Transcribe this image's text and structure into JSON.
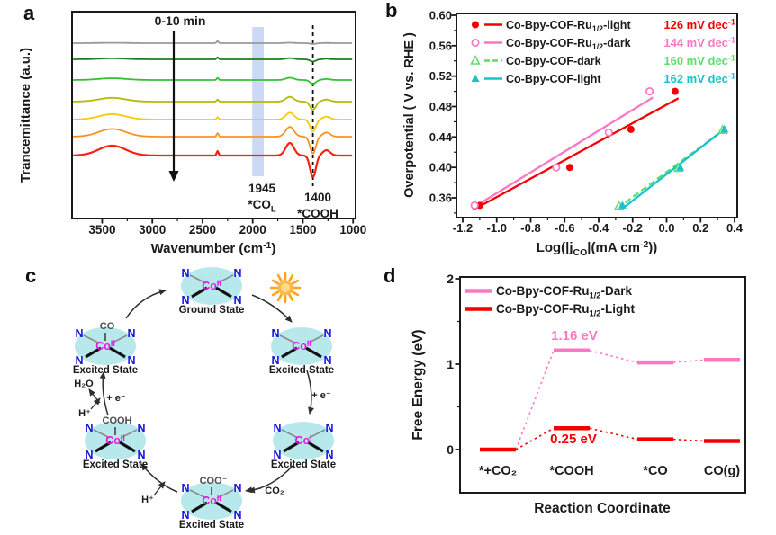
{
  "figure": {
    "background": "#ffffff"
  },
  "panels": [
    {
      "letter": "a"
    },
    {
      "letter": "b"
    },
    {
      "letter": "c"
    },
    {
      "letter": "d"
    }
  ],
  "chart_data": [
    {
      "panel": "a",
      "type": "line",
      "kind": "ftir-spectra",
      "ylabel": "Trancemittance (a.u.)",
      "xlabel_parts": [
        {
          "t": "Wavenumber (cm"
        },
        {
          "t": "-1",
          "sup": true
        },
        {
          "t": ")"
        }
      ],
      "x_ticks": [
        "3500",
        "3000",
        "2500",
        "2000",
        "1500",
        "1000"
      ],
      "x_range": [
        3800,
        975
      ],
      "time_annotation": "0-10 min",
      "highlight_band": {
        "from": 2005,
        "to": 1890,
        "color": "#ccd9f4"
      },
      "dashed_line_at": 1400,
      "peak_labels": [
        {
          "value": "1945",
          "species_parts": [
            {
              "t": "*CO"
            },
            {
              "t": "L",
              "sub": true
            }
          ]
        },
        {
          "value": "1400",
          "species_parts": [
            {
              "t": "*COOH"
            }
          ]
        }
      ],
      "traces": [
        {
          "time_order": 0,
          "color": "#999999",
          "offset": 48,
          "scale": 0.04
        },
        {
          "time_order": 1,
          "color": "#1e7d1e",
          "offset": 66,
          "scale": 0.1
        },
        {
          "time_order": 2,
          "color": "#33c133",
          "offset": 89,
          "scale": 0.18
        },
        {
          "time_order": 3,
          "color": "#b3bb00",
          "offset": 113,
          "scale": 0.38
        },
        {
          "time_order": 4,
          "color": "#fec800",
          "offset": 133,
          "scale": 0.55
        },
        {
          "time_order": 5,
          "color": "#ff9020",
          "offset": 152,
          "scale": 0.78
        },
        {
          "time_order": 6,
          "color": "#f82010",
          "offset": 173,
          "scale": 1.0
        }
      ],
      "peaks": [
        {
          "center": 3400,
          "width": 190,
          "depth": -11
        },
        {
          "center": 2350,
          "width": 13,
          "depth": -5,
          "min_scale": 0.45
        },
        {
          "center": 1630,
          "width": 58,
          "depth": -14
        },
        {
          "center": 1400,
          "width": 40,
          "depth": 24
        },
        {
          "center": 1265,
          "width": 52,
          "depth": -6
        }
      ]
    },
    {
      "panel": "b",
      "type": "scatter",
      "kind": "tafel-plot",
      "ylabel": "Overpotential ( V vs. RHE )",
      "xlabel_parts": [
        {
          "t": "Log(|j"
        },
        {
          "t": "CO",
          "sub": true
        },
        {
          "t": "|(mA cm"
        },
        {
          "t": "-2",
          "sup": true
        },
        {
          "t": "))"
        }
      ],
      "x_ticks": [
        "-1.2",
        "-1.0",
        "-0.8",
        "-0.6",
        "-0.4",
        "-0.2",
        "0.0",
        "0.2",
        "0.4"
      ],
      "y_ticks": [
        "0.36",
        "0.40",
        "0.44",
        "0.48",
        "0.52",
        "0.56",
        "0.60"
      ],
      "xlim": [
        -1.26,
        0.42
      ],
      "ylim": [
        0.332,
        0.602
      ],
      "series": [
        {
          "name_parts": [
            {
              "t": "Co-Bpy-COF-Ru"
            },
            {
              "t": "1/2",
              "sub": true
            },
            {
              "t": "-light"
            }
          ],
          "color": "#f40000",
          "marker": "circle-filled",
          "line": "solid",
          "slope_parts": [
            {
              "t": "126 mV dec"
            },
            {
              "t": "-1",
              "sup": true
            }
          ],
          "points": [
            [
              -1.1,
              0.35
            ],
            [
              -0.57,
              0.4
            ],
            [
              -0.21,
              0.45
            ],
            [
              0.05,
              0.5
            ]
          ],
          "fit_line": [
            [
              -1.14,
              0.344
            ],
            [
              0.07,
              0.491
            ]
          ]
        },
        {
          "name_parts": [
            {
              "t": "Co-Bpy-COF-Ru"
            },
            {
              "t": "1/2",
              "sub": true
            },
            {
              "t": "-dark"
            }
          ],
          "color": "#ff77c4",
          "marker": "circle-open",
          "line": "solid",
          "slope_parts": [
            {
              "t": "144 mV dec"
            },
            {
              "t": "-1",
              "sup": true
            }
          ],
          "points": [
            [
              -1.13,
              0.35
            ],
            [
              -0.65,
              0.4
            ],
            [
              -0.34,
              0.446
            ],
            [
              -0.1,
              0.5
            ]
          ],
          "fit_line": [
            [
              -1.14,
              0.347
            ],
            [
              -0.08,
              0.492
            ]
          ]
        },
        {
          "name_parts": [
            {
              "t": "Co-Bpy-COF-dark"
            }
          ],
          "color": "#5fdc6a",
          "marker": "triangle-open",
          "line": "dashed",
          "slope_parts": [
            {
              "t": "160 mV dec"
            },
            {
              "t": "-1",
              "sup": true
            }
          ],
          "points": [
            [
              -0.28,
              0.349
            ],
            [
              0.07,
              0.399
            ],
            [
              0.33,
              0.449
            ]
          ],
          "fit_line": [
            [
              -0.29,
              0.346
            ],
            [
              0.34,
              0.45
            ]
          ]
        },
        {
          "name_parts": [
            {
              "t": "Co-Bpy-COF-light"
            }
          ],
          "color": "#18c2cc",
          "marker": "triangle-filled",
          "line": "solid",
          "slope_parts": [
            {
              "t": "162 mV dec"
            },
            {
              "t": "-1",
              "sup": true
            }
          ],
          "points": [
            [
              -0.26,
              0.35
            ],
            [
              0.08,
              0.4
            ],
            [
              0.34,
              0.45
            ]
          ],
          "fit_line": [
            [
              -0.27,
              0.344
            ],
            [
              0.35,
              0.452
            ]
          ]
        }
      ]
    },
    {
      "panel": "c",
      "type": "diagram",
      "kind": "photocatalytic-cycle",
      "donor_atom": "N",
      "nodes": [
        {
          "id": "ground-state",
          "metal": "Co",
          "oxidation": "II",
          "ligand": "",
          "label": "Ground State"
        },
        {
          "id": "excited-co2",
          "metal": "Co",
          "oxidation": "II",
          "ligand": "",
          "label": "Excited State"
        },
        {
          "id": "excited-co1",
          "metal": "Co",
          "oxidation": "I",
          "ligand": "",
          "label": "Excited State"
        },
        {
          "id": "excited-coo",
          "metal": "Co",
          "oxidation": "II",
          "ligand": "COO⁻",
          "label": "Excited State"
        },
        {
          "id": "excited-cooh",
          "metal": "Co",
          "oxidation": "II",
          "ligand": "COOH",
          "label": "Excited State"
        },
        {
          "id": "excited-co-bound",
          "metal": "Co",
          "oxidation": "II",
          "ligand": "CO",
          "label": "Excited State"
        }
      ],
      "step_labels": {
        "electron1": "+ e⁻",
        "co2_in": "CO₂",
        "proton1": "H⁺",
        "proton2": "H⁺",
        "water_out": "H₂O",
        "electron2": "+ e⁻"
      }
    },
    {
      "panel": "d",
      "type": "line",
      "kind": "free-energy-diagram",
      "xlabel": "Reaction Coordinate",
      "ylabel": "Free Energy (eV)",
      "categories": [
        "*+CO₂",
        "*COOH",
        "*CO",
        "CO(g)"
      ],
      "y_ticks": [
        "0",
        "1",
        "2"
      ],
      "ylim": [
        -0.5,
        2.05
      ],
      "series": [
        {
          "name_parts": [
            {
              "t": "Co-Bpy-COF-Ru"
            },
            {
              "t": "1/2",
              "sub": true
            },
            {
              "t": "-Dark"
            }
          ],
          "color": "#ff77c4",
          "values": [
            0,
            1.16,
            1.02,
            1.05
          ],
          "draw_first": false
        },
        {
          "name_parts": [
            {
              "t": "Co-Bpy-COF-Ru"
            },
            {
              "t": "1/2",
              "sub": true
            },
            {
              "t": "-Light"
            }
          ],
          "color": "#f40000",
          "values": [
            0,
            0.25,
            0.12,
            0.1
          ],
          "draw_first": true
        }
      ],
      "annotations": [
        {
          "text": "1.16 eV",
          "color": "#ff77c4"
        },
        {
          "text": "0.25 eV",
          "color": "#f40000"
        }
      ]
    }
  ]
}
